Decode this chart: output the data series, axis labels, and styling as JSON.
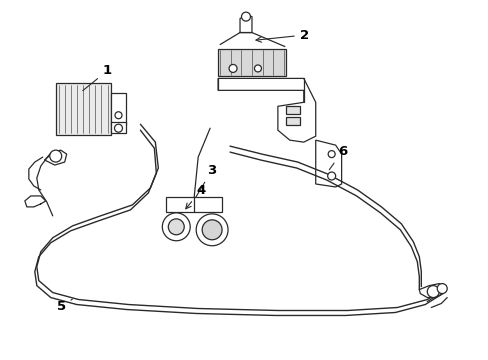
{
  "bg_color": "#ffffff",
  "line_color": "#2a2a2a",
  "label_color": "#000000",
  "lw": 0.9,
  "fig_w": 4.89,
  "fig_h": 3.6,
  "dpi": 100
}
